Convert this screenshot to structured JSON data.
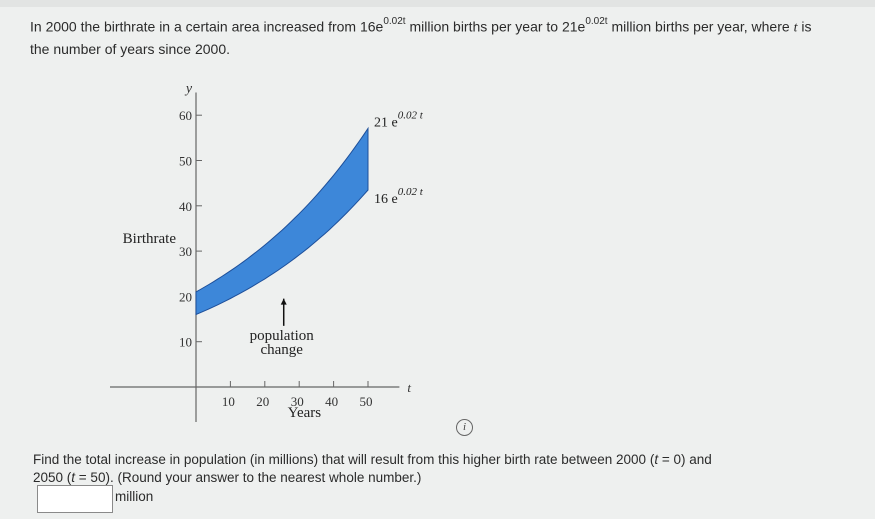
{
  "problem": {
    "p1": "In 2000 the birthrate in a certain area increased from ",
    "coef_low": "16e",
    "exp_low": "0.02t",
    "p2": " million births per year to ",
    "coef_high": "21e",
    "exp_high": "0.02t",
    "p3": " million births per year, where ",
    "var": "t",
    "p4": " is",
    "line2": "the number of years since 2000."
  },
  "chart_data": {
    "type": "area",
    "x_axis_var": "t",
    "y_axis_var": "y",
    "ylabel": "Birthrate",
    "xlabel": "Years",
    "x_ticks": [
      10,
      20,
      30,
      40,
      50
    ],
    "y_ticks": [
      10,
      20,
      30,
      40,
      50,
      60
    ],
    "xlim": [
      0,
      60
    ],
    "ylim": [
      0,
      65
    ],
    "series": [
      {
        "name": "21 e^0.02t",
        "coef": 21,
        "rate": 0.02,
        "label_coef": "21 e",
        "label_exp": "0.02 t"
      },
      {
        "name": "16 e^0.02t",
        "coef": 16,
        "rate": 0.02,
        "label_coef": "16 e",
        "label_exp": "0.02 t"
      }
    ],
    "x_range": [
      0,
      50
    ],
    "fill_color": "#3d87d9",
    "annotation": [
      "population",
      "change"
    ]
  },
  "question": {
    "q1": "Find the total increase in population (in millions) that will result from this higher birth rate between 2000 (",
    "q_t1": "t",
    "q2": " = 0) and",
    "q3": "2050 (",
    "q_t2": "t",
    "q4": " = 50). (Round your answer to the nearest whole number.)"
  },
  "answer": {
    "value": "",
    "unit": "million"
  },
  "icons": {
    "info": "i"
  }
}
